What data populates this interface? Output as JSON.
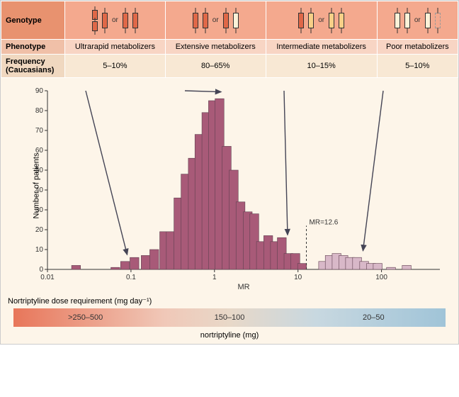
{
  "table": {
    "row_labels": [
      "Genotype",
      "Phenotype",
      "Frequency (Caucasians)"
    ],
    "phenotypes": [
      "Ultrarapid metabolizers",
      "Extensive metabolizers",
      "Intermediate metabolizers",
      "Poor metabolizers"
    ],
    "frequencies": [
      "5–10%",
      "80–65%",
      "10–15%",
      "5–10%"
    ],
    "header_bg": [
      "#f4a98e",
      "#f4a98e",
      "#f4a98e",
      "#f4a98e"
    ],
    "row1_bg": [
      "#f8d5c4",
      "#f8d5c4",
      "#f8d5c4",
      "#f8d5c4"
    ],
    "row2_bg": [
      "#f8e8d4",
      "#f8e8d4",
      "#f8e8d4",
      "#f8e8d4"
    ],
    "label_bg": [
      "#e8926f",
      "#f0c0a8",
      "#f0d8c0"
    ],
    "allele_colors": {
      "active": "#e06848",
      "semi": "#f0a060",
      "weak": "#f8d088",
      "null": "#fdf2d8"
    }
  },
  "chart": {
    "type": "histogram",
    "xlabel": "MR",
    "ylabel": "Number of patients",
    "xscale": "log",
    "xlim": [
      0.01,
      500
    ],
    "ylim": [
      0,
      90
    ],
    "xticks": [
      0.01,
      0.1,
      1,
      10,
      100
    ],
    "ytick_step": 10,
    "bar_fill": "#a85a78",
    "bar_fill_light": "#d8b8c8",
    "bar_stroke": "#604050",
    "bg": "#fdf5e9",
    "axis_color": "#333",
    "mr_line": {
      "x": 12.6,
      "label": "MR=12.6"
    },
    "bars": [
      {
        "x": 0.022,
        "y": 2
      },
      {
        "x": 0.065,
        "y": 1
      },
      {
        "x": 0.085,
        "y": 4
      },
      {
        "x": 0.11,
        "y": 6
      },
      {
        "x": 0.15,
        "y": 7
      },
      {
        "x": 0.19,
        "y": 10
      },
      {
        "x": 0.25,
        "y": 19
      },
      {
        "x": 0.3,
        "y": 19
      },
      {
        "x": 0.37,
        "y": 36
      },
      {
        "x": 0.45,
        "y": 48
      },
      {
        "x": 0.55,
        "y": 56
      },
      {
        "x": 0.66,
        "y": 68
      },
      {
        "x": 0.8,
        "y": 79
      },
      {
        "x": 0.96,
        "y": 85
      },
      {
        "x": 1.15,
        "y": 86
      },
      {
        "x": 1.4,
        "y": 62
      },
      {
        "x": 1.7,
        "y": 50
      },
      {
        "x": 2.05,
        "y": 34
      },
      {
        "x": 2.5,
        "y": 29
      },
      {
        "x": 3.0,
        "y": 28
      },
      {
        "x": 3.6,
        "y": 14
      },
      {
        "x": 4.4,
        "y": 17
      },
      {
        "x": 5.3,
        "y": 14
      },
      {
        "x": 6.4,
        "y": 16
      },
      {
        "x": 7.7,
        "y": 8
      },
      {
        "x": 9.3,
        "y": 8
      },
      {
        "x": 11.2,
        "y": 3
      },
      {
        "x": 20,
        "y": 4
      },
      {
        "x": 24,
        "y": 7
      },
      {
        "x": 29,
        "y": 8
      },
      {
        "x": 35,
        "y": 7
      },
      {
        "x": 42,
        "y": 6
      },
      {
        "x": 51,
        "y": 6
      },
      {
        "x": 62,
        "y": 4
      },
      {
        "x": 75,
        "y": 3
      },
      {
        "x": 90,
        "y": 3
      },
      {
        "x": 130,
        "y": 1
      },
      {
        "x": 200,
        "y": 2
      }
    ],
    "light_after_x": 12.6,
    "arrows": [
      {
        "from_col": 0,
        "to_x": 0.09,
        "to_y": 6
      },
      {
        "from_col": 1,
        "to_x": 1.2,
        "to_y": 88
      },
      {
        "from_col": 2,
        "to_x": 7.5,
        "to_y": 16
      },
      {
        "from_col": 3,
        "to_x": 60,
        "to_y": 8
      }
    ]
  },
  "dose": {
    "title": "Nortriptyline dose requirement (mg day⁻¹)",
    "segments": [
      ">250–500",
      "150–100",
      "20–50"
    ],
    "caption": "nortriptyline (mg)"
  }
}
